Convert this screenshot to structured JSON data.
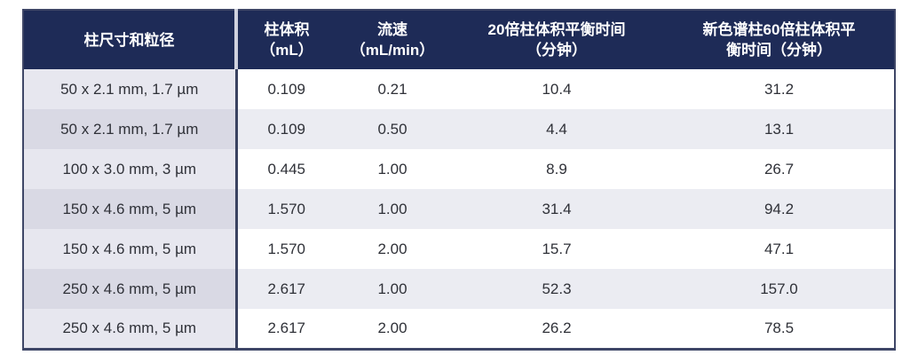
{
  "colors": {
    "header-bg": "#1e2b57",
    "header-text": "#ffffff",
    "body-text": "#2f3138",
    "col1-light": "#e7e7ef",
    "col1-dark": "#d9d9e4",
    "row-light": "#ffffff",
    "row-dark": "#ebecf2",
    "outer-border": "#3e4667",
    "sep-dark": "#3a4260",
    "sep-light": "#cfd1de"
  },
  "chart_data": {
    "type": "table",
    "headers": [
      "柱尺寸和粒径",
      "柱体积\n（mL）",
      "流速\n（mL/min）",
      "20倍柱体积平衡时间\n（分钟）",
      "新色谱柱60倍柱体积平\n衡时间（分钟）"
    ],
    "rows": [
      [
        "50 x 2.1 mm, 1.7 µm",
        "0.109",
        "0.21",
        "10.4",
        "31.2"
      ],
      [
        "50 x 2.1 mm, 1.7 µm",
        "0.109",
        "0.50",
        "4.4",
        "13.1"
      ],
      [
        "100 x 3.0 mm, 3 µm",
        "0.445",
        "1.00",
        "8.9",
        "26.7"
      ],
      [
        "150 x 4.6 mm, 5 µm",
        "1.570",
        "1.00",
        "31.4",
        "94.2"
      ],
      [
        "150 x 4.6 mm, 5 µm",
        "1.570",
        "2.00",
        "15.7",
        "47.1"
      ],
      [
        "250 x 4.6 mm, 5 µm",
        "2.617",
        "1.00",
        "52.3",
        "157.0"
      ],
      [
        "250 x 4.6 mm, 5 µm",
        "2.617",
        "2.00",
        "26.2",
        "78.5"
      ]
    ]
  }
}
